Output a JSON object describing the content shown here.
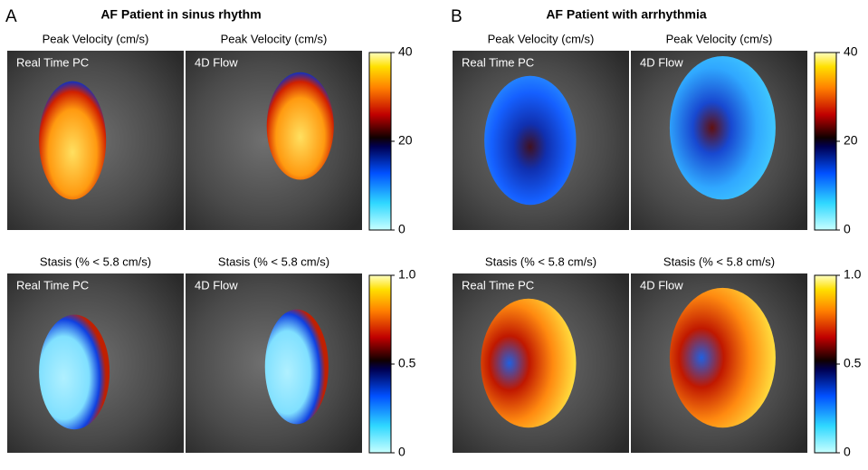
{
  "panels": [
    {
      "letter": "A",
      "title": "AF Patient in sinus rhythm",
      "rows": [
        {
          "images": [
            {
              "title": "Peak Velocity (cm/s)",
              "label": "Real Time PC"
            },
            {
              "title": "Peak Velocity (cm/s)",
              "label": "4D Flow"
            }
          ],
          "colorbar_ticks": [
            "40",
            "20",
            "0"
          ]
        },
        {
          "images": [
            {
              "title": "Stasis (% < 5.8 cm/s)",
              "label": "Real Time PC"
            },
            {
              "title": "Stasis (% < 5.8 cm/s)",
              "label": "4D Flow"
            }
          ],
          "colorbar_ticks": [
            "1.0",
            "0.5",
            "0"
          ]
        }
      ]
    },
    {
      "letter": "B",
      "title": "AF Patient with arrhythmia",
      "rows": [
        {
          "images": [
            {
              "title": "Peak Velocity (cm/s)",
              "label": "Real Time PC"
            },
            {
              "title": "Peak Velocity (cm/s)",
              "label": "4D Flow"
            }
          ],
          "colorbar_ticks": [
            "40",
            "20",
            "0"
          ]
        },
        {
          "images": [
            {
              "title": "Stasis (% < 5.8 cm/s)",
              "label": "Real Time PC"
            },
            {
              "title": "Stasis (% < 5.8 cm/s)",
              "label": "4D Flow"
            }
          ],
          "colorbar_ticks": [
            "1.0",
            "0.5",
            "0"
          ]
        }
      ]
    }
  ]
}
